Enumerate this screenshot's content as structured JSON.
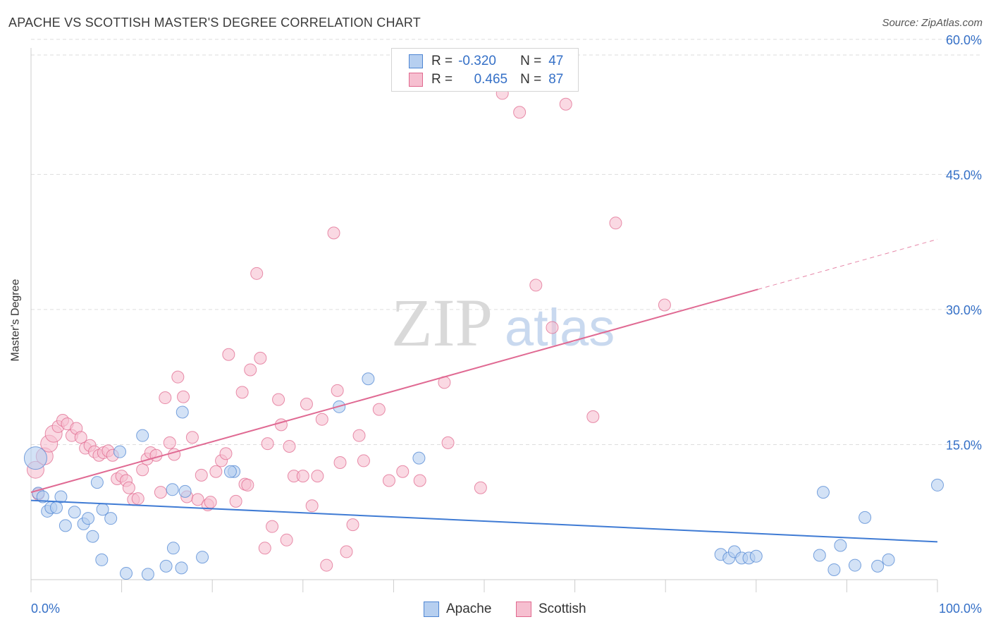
{
  "title": "APACHE VS SCOTTISH MASTER'S DEGREE CORRELATION CHART",
  "source": "Source: ZipAtlas.com",
  "watermark": {
    "zip": "ZIP",
    "atlas": "atlas"
  },
  "colors": {
    "apache": "#4f86d3",
    "apache_fill": "#b6cff0",
    "scottish": "#e0698f",
    "scottish_fill": "#f6bfd0",
    "tick_text": "#3570c7",
    "grid": "#dcdcdc"
  },
  "legend": {
    "apache": {
      "r_label": "R =",
      "r_value": "-0.320",
      "n_label": "N =",
      "n_value": "47"
    },
    "scottish": {
      "r_label": "R =",
      "r_value": "0.465",
      "n_label": "N =",
      "n_value": "87"
    }
  },
  "bottom_legend": {
    "apache": "Apache",
    "scottish": "Scottish"
  },
  "chart_data": {
    "type": "scatter",
    "title": "APACHE VS SCOTTISH MASTER'S DEGREE CORRELATION CHART",
    "xlabel": "",
    "ylabel": "Master's Degree",
    "xlim": [
      0,
      100
    ],
    "ylim": [
      0,
      62
    ],
    "x_tick_labels": [
      "0.0%",
      "100.0%"
    ],
    "y_ticks": [
      15,
      30,
      45,
      60
    ],
    "y_tick_labels": [
      "15.0%",
      "30.0%",
      "45.0%",
      "60.0%"
    ],
    "grid": true,
    "series": [
      {
        "name": "Apache",
        "r": -0.32,
        "n": 47,
        "trend": {
          "x0": 0,
          "y0": 8.8,
          "x1": 100,
          "y1": 4.2,
          "solid_to": 100
        },
        "points": [
          [
            0.5,
            13.5,
            4
          ],
          [
            0.8,
            9.6,
            1
          ],
          [
            1.3,
            9.2,
            1
          ],
          [
            1.8,
            7.6,
            1
          ],
          [
            2.2,
            8.0,
            1
          ],
          [
            2.8,
            8.0,
            1
          ],
          [
            3.3,
            9.2,
            1
          ],
          [
            3.8,
            6.0,
            1
          ],
          [
            4.8,
            7.5,
            1
          ],
          [
            5.8,
            6.2,
            1
          ],
          [
            6.3,
            6.8,
            1
          ],
          [
            6.8,
            4.8,
            1
          ],
          [
            7.3,
            10.8,
            1
          ],
          [
            7.8,
            2.2,
            1
          ],
          [
            7.9,
            7.8,
            1
          ],
          [
            8.8,
            6.8,
            1
          ],
          [
            9.8,
            14.2,
            1
          ],
          [
            10.5,
            0.7,
            1
          ],
          [
            12.3,
            16.0,
            1
          ],
          [
            12.9,
            0.6,
            1
          ],
          [
            14.9,
            1.5,
            1
          ],
          [
            15.7,
            3.5,
            1
          ],
          [
            15.6,
            10.0,
            1
          ],
          [
            16.6,
            1.3,
            1
          ],
          [
            16.7,
            18.6,
            1
          ],
          [
            17.0,
            9.8,
            1
          ],
          [
            18.9,
            2.5,
            1
          ],
          [
            22.4,
            12.0,
            1
          ],
          [
            34.0,
            19.2,
            1
          ],
          [
            37.2,
            22.3,
            1
          ],
          [
            42.8,
            13.5,
            1
          ],
          [
            76.1,
            2.8,
            1
          ],
          [
            77.0,
            2.4,
            1
          ],
          [
            77.6,
            3.1,
            1
          ],
          [
            78.4,
            2.4,
            1
          ],
          [
            79.2,
            2.4,
            1
          ],
          [
            80.0,
            2.6,
            1
          ],
          [
            87.0,
            2.7,
            1
          ],
          [
            87.4,
            9.7,
            1
          ],
          [
            88.6,
            1.1,
            1
          ],
          [
            89.3,
            3.8,
            1
          ],
          [
            90.9,
            1.6,
            1
          ],
          [
            92.0,
            6.9,
            1
          ],
          [
            93.4,
            1.5,
            1
          ],
          [
            94.6,
            2.2,
            1
          ],
          [
            100.0,
            10.5,
            1
          ],
          [
            22.0,
            12.0,
            1
          ]
        ]
      },
      {
        "name": "Scottish",
        "r": 0.465,
        "n": 87,
        "trend": {
          "x0": 0,
          "y0": 9.7,
          "x1": 100,
          "y1": 37.8,
          "solid_to": 80.2
        },
        "points": [
          [
            0.5,
            12.2,
            2
          ],
          [
            0.8,
            9.5,
            1
          ],
          [
            1.5,
            13.7,
            2
          ],
          [
            2.0,
            15.1,
            2
          ],
          [
            2.5,
            16.2,
            2
          ],
          [
            3.0,
            17.0,
            1
          ],
          [
            3.5,
            17.7,
            1
          ],
          [
            4.0,
            17.3,
            1
          ],
          [
            4.5,
            16.0,
            1
          ],
          [
            5.0,
            16.8,
            1
          ],
          [
            5.5,
            15.8,
            1
          ],
          [
            6.0,
            14.6,
            1
          ],
          [
            6.5,
            14.9,
            1
          ],
          [
            7.0,
            14.2,
            1
          ],
          [
            7.5,
            13.8,
            1
          ],
          [
            8.0,
            14.1,
            1
          ],
          [
            8.5,
            14.3,
            1
          ],
          [
            9.0,
            13.8,
            1
          ],
          [
            9.5,
            11.2,
            1
          ],
          [
            10.0,
            11.5,
            1
          ],
          [
            10.5,
            11.0,
            1
          ],
          [
            10.8,
            10.2,
            1
          ],
          [
            11.3,
            8.9,
            1
          ],
          [
            11.8,
            9.0,
            1
          ],
          [
            12.3,
            12.2,
            1
          ],
          [
            12.8,
            13.4,
            1
          ],
          [
            13.2,
            14.1,
            1
          ],
          [
            13.8,
            13.8,
            1
          ],
          [
            14.3,
            9.7,
            1
          ],
          [
            14.8,
            20.2,
            1
          ],
          [
            15.3,
            15.2,
            1
          ],
          [
            15.8,
            13.9,
            1
          ],
          [
            16.2,
            22.5,
            1
          ],
          [
            16.8,
            20.3,
            1
          ],
          [
            17.2,
            9.2,
            1
          ],
          [
            17.8,
            15.8,
            1
          ],
          [
            18.4,
            8.9,
            1
          ],
          [
            18.8,
            11.6,
            1
          ],
          [
            19.5,
            8.3,
            1
          ],
          [
            19.8,
            8.6,
            1
          ],
          [
            20.4,
            12.0,
            1
          ],
          [
            21.0,
            13.2,
            1
          ],
          [
            21.5,
            14.0,
            1
          ],
          [
            21.8,
            25.0,
            1
          ],
          [
            22.6,
            8.7,
            1
          ],
          [
            23.3,
            20.8,
            1
          ],
          [
            23.6,
            10.6,
            1
          ],
          [
            24.2,
            23.3,
            1
          ],
          [
            24.9,
            34.0,
            1
          ],
          [
            25.3,
            24.6,
            1
          ],
          [
            25.8,
            3.5,
            1
          ],
          [
            26.1,
            15.1,
            1
          ],
          [
            26.6,
            5.9,
            1
          ],
          [
            27.3,
            20.0,
            1
          ],
          [
            27.6,
            17.2,
            1
          ],
          [
            28.2,
            4.4,
            1
          ],
          [
            28.5,
            14.8,
            1
          ],
          [
            29.0,
            11.5,
            1
          ],
          [
            30.0,
            11.5,
            1
          ],
          [
            30.4,
            19.5,
            1
          ],
          [
            31.0,
            8.2,
            1
          ],
          [
            31.6,
            11.5,
            1
          ],
          [
            32.1,
            17.8,
            1
          ],
          [
            32.6,
            1.6,
            1
          ],
          [
            33.4,
            38.5,
            1
          ],
          [
            33.8,
            21.0,
            1
          ],
          [
            34.1,
            13.0,
            1
          ],
          [
            34.8,
            3.1,
            1
          ],
          [
            35.5,
            6.1,
            1
          ],
          [
            36.2,
            16.0,
            1
          ],
          [
            36.7,
            13.2,
            1
          ],
          [
            38.4,
            18.9,
            1
          ],
          [
            39.5,
            11.0,
            1
          ],
          [
            41.0,
            12.0,
            1
          ],
          [
            42.9,
            11.0,
            1
          ],
          [
            45.6,
            21.9,
            1
          ],
          [
            46.0,
            15.2,
            1
          ],
          [
            49.6,
            10.2,
            1
          ],
          [
            52.0,
            54.0,
            1
          ],
          [
            53.9,
            51.9,
            1
          ],
          [
            55.7,
            32.7,
            1
          ],
          [
            57.5,
            28.0,
            1
          ],
          [
            59.0,
            52.8,
            1
          ],
          [
            62.0,
            18.1,
            1
          ],
          [
            64.5,
            39.6,
            1
          ],
          [
            69.9,
            30.5,
            1
          ],
          [
            23.9,
            10.5,
            1
          ]
        ]
      }
    ]
  }
}
